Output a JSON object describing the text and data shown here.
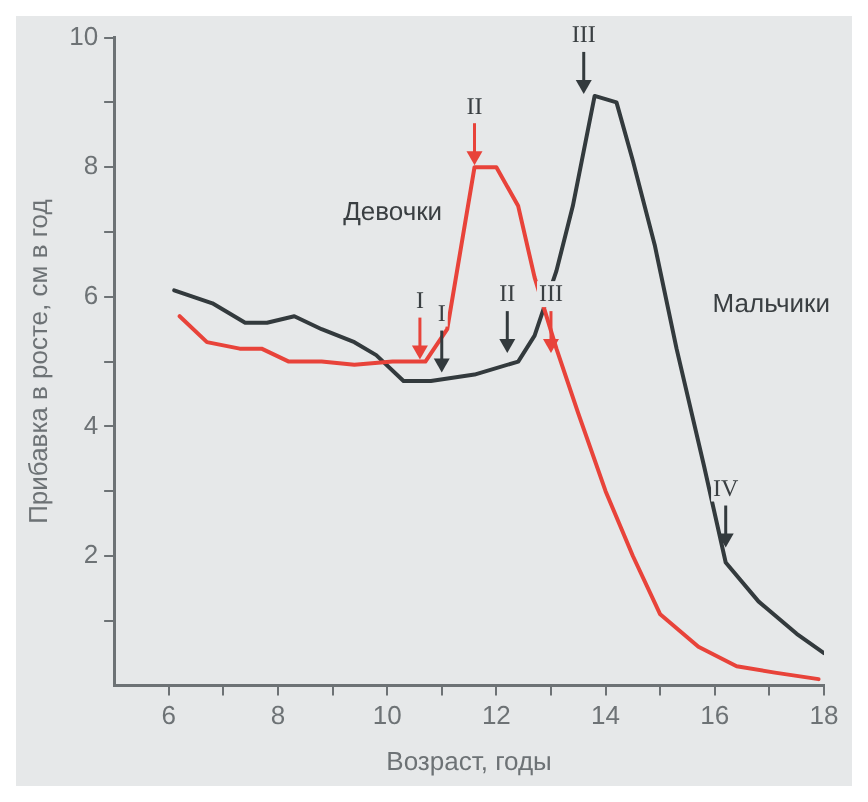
{
  "chart_data": {
    "type": "line",
    "xlabel": "Возраст, годы",
    "ylabel": "Прибавка в росте, см в год",
    "xlim": [
      5,
      18
    ],
    "xticks": [
      6,
      {
        "value": 7,
        "label": null
      },
      8,
      {
        "value": 9,
        "label": null
      },
      10,
      {
        "value": 11,
        "label": null
      },
      12,
      {
        "value": 13,
        "label": null
      },
      14,
      {
        "value": 15,
        "label": null
      },
      16,
      {
        "value": 17,
        "label": null
      },
      18
    ],
    "ylim": [
      0,
      10
    ],
    "yticks": [
      {
        "value": 1,
        "label": null
      },
      2,
      {
        "value": 3,
        "label": null
      },
      4,
      {
        "value": 5,
        "label": null
      },
      6,
      {
        "value": 7,
        "label": null
      },
      8,
      {
        "value": 9,
        "label": null
      },
      10
    ],
    "grid": false,
    "legend": false,
    "marker": "none",
    "line_style": "solid",
    "series": [
      {
        "name": "Девочки",
        "color": "#e8433a",
        "x": [
          6.2,
          6.7,
          7.3,
          7.7,
          8.2,
          8.8,
          9.4,
          10.1,
          10.7,
          11.1,
          11.3,
          11.6,
          12.0,
          12.4,
          12.7,
          13.1,
          13.5,
          14.0,
          14.5,
          15.0,
          15.7,
          16.4,
          17.1,
          17.9
        ],
        "values": [
          5.7,
          5.3,
          5.2,
          5.2,
          5.0,
          5.0,
          4.95,
          5.0,
          5.0,
          5.5,
          6.5,
          8.0,
          8.0,
          7.4,
          6.3,
          5.2,
          4.2,
          3.0,
          2.0,
          1.1,
          0.6,
          0.3,
          0.2,
          0.1
        ]
      },
      {
        "name": "Мальчики",
        "color": "#333a3d",
        "x": [
          6.1,
          6.8,
          7.4,
          7.8,
          8.3,
          8.8,
          9.4,
          9.8,
          10.3,
          10.8,
          11.6,
          12.4,
          12.7,
          13.1,
          13.4,
          13.8,
          14.2,
          14.5,
          14.9,
          15.3,
          15.8,
          16.2,
          16.8,
          17.5,
          18.0
        ],
        "values": [
          6.1,
          5.9,
          5.6,
          5.6,
          5.7,
          5.5,
          5.3,
          5.1,
          4.7,
          4.7,
          4.8,
          5.0,
          5.4,
          6.4,
          7.4,
          9.1,
          9.0,
          8.1,
          6.8,
          5.2,
          3.4,
          1.9,
          1.3,
          0.8,
          0.5
        ]
      }
    ],
    "annotations": [
      {
        "text": "I",
        "x": 10.6,
        "y": 5.0
      },
      {
        "text": "II",
        "x": 11.6,
        "y": 8.0
      },
      {
        "text": "III",
        "x": 13.0,
        "y": 5.1
      },
      {
        "text": "I",
        "x": 11.0,
        "y": 4.8
      },
      {
        "text": "II",
        "x": 12.2,
        "y": 5.1
      },
      {
        "text": "III",
        "x": 13.6,
        "y": 9.1
      },
      {
        "text": "IV",
        "x": 16.2,
        "y": 2.1
      }
    ]
  }
}
